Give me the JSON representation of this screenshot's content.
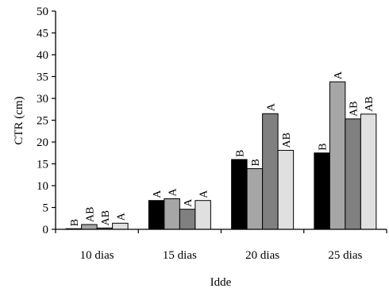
{
  "chart_data": {
    "type": "bar",
    "title": "",
    "xlabel": "Idde",
    "ylabel": "CTR (cm)",
    "ylim": [
      0,
      50
    ],
    "yticks": [
      "0",
      "5",
      "10",
      "15",
      "20",
      "25",
      "30",
      "35",
      "40",
      "45",
      "50"
    ],
    "categories": [
      "10 dias",
      "15 dias",
      "20 dias",
      "25 dias"
    ],
    "grid": false,
    "legend": "none",
    "series": [
      {
        "color": "#000000",
        "values": [
          0.1,
          6.6,
          16.0,
          17.5
        ],
        "labels": [
          "B",
          "A",
          "B",
          "B"
        ]
      },
      {
        "color": "#a6a6a6",
        "values": [
          1.1,
          7.0,
          13.9,
          33.8
        ],
        "labels": [
          "AB",
          "A",
          "B",
          "A"
        ]
      },
      {
        "color": "#808080",
        "values": [
          0.3,
          4.6,
          26.5,
          25.3
        ],
        "labels": [
          "AB",
          "A",
          "A",
          "AB"
        ]
      },
      {
        "color": "#e0e0e0",
        "values": [
          1.4,
          6.6,
          18.1,
          26.4
        ],
        "labels": [
          "A",
          "A",
          "AB",
          "AB"
        ]
      }
    ]
  }
}
